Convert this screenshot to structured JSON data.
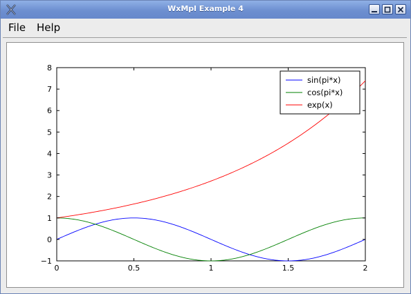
{
  "window": {
    "title": "WxMpl Example 4"
  },
  "menu": {
    "file_label": "File",
    "help_label": "Help"
  },
  "icons": {
    "app": "x-app-icon",
    "minimize": "minimize-icon",
    "maximize": "maximize-icon",
    "close": "close-icon"
  },
  "chart_data": {
    "type": "line",
    "title": "",
    "xlabel": "",
    "ylabel": "",
    "xlim": [
      0,
      2
    ],
    "ylim": [
      -1,
      8
    ],
    "xticks": [
      "0",
      "0.5",
      "1",
      "1.5",
      "2"
    ],
    "yticks": [
      "−1",
      "0",
      "1",
      "2",
      "3",
      "4",
      "5",
      "6",
      "7",
      "8"
    ],
    "grid": false,
    "legend_position": "top-right",
    "series": [
      {
        "name": "sin(pi*x)",
        "color": "#0000ff",
        "function": "sin(pi*x)"
      },
      {
        "name": "cos(pi*x)",
        "color": "#008000",
        "function": "cos(pi*x)"
      },
      {
        "name": "exp(x)",
        "color": "#ff0000",
        "function": "exp(x)"
      }
    ]
  }
}
